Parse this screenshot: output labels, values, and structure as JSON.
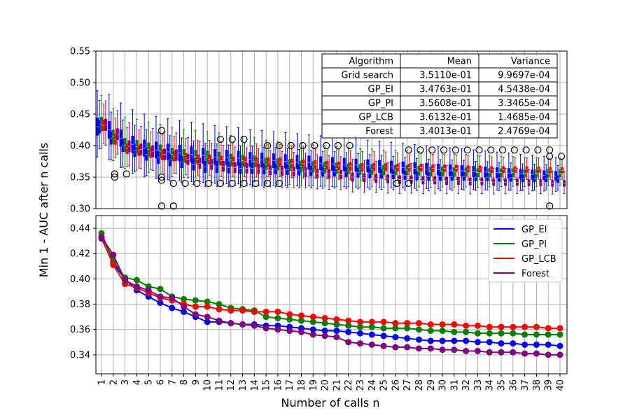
{
  "chart_data": [
    {
      "type": "box",
      "name": "boxplot-panel",
      "ylim": [
        0.3,
        0.55
      ],
      "yticks": [
        "0.30",
        "0.35",
        "0.40",
        "0.45",
        "0.50",
        "0.55"
      ],
      "series": [
        {
          "name": "Grid search",
          "color": "#0000ff",
          "median": [
            0.43,
            0.425,
            0.412,
            0.402,
            0.396,
            0.393,
            0.39,
            0.388,
            0.386,
            0.384,
            0.382,
            0.381,
            0.38,
            0.378,
            0.377,
            0.376,
            0.375,
            0.374,
            0.373,
            0.372,
            0.371,
            0.37,
            0.369,
            0.368,
            0.367,
            0.366,
            0.365,
            0.364,
            0.363,
            0.362,
            0.361,
            0.36,
            0.359,
            0.358,
            0.357,
            0.356,
            0.355,
            0.354,
            0.353,
            0.352
          ]
        },
        {
          "name": "GP_EI",
          "color": "#0000ff",
          "median": [
            0.43,
            0.412,
            0.4,
            0.392,
            0.386,
            0.381,
            0.377,
            0.374,
            0.37,
            0.366,
            0.366,
            0.365,
            0.364,
            0.364,
            0.363,
            0.363,
            0.362,
            0.361,
            0.36,
            0.359,
            0.359,
            0.358,
            0.357,
            0.356,
            0.355,
            0.354,
            0.353,
            0.352,
            0.351,
            0.351,
            0.351,
            0.351,
            0.35,
            0.35,
            0.349,
            0.349,
            0.348,
            0.348,
            0.348,
            0.347
          ]
        },
        {
          "name": "GP_PI",
          "color": "#008000",
          "median": [
            0.434,
            0.414,
            0.401,
            0.398,
            0.394,
            0.391,
            0.386,
            0.384,
            0.383,
            0.382,
            0.38,
            0.377,
            0.376,
            0.375,
            0.371,
            0.37,
            0.369,
            0.367,
            0.366,
            0.365,
            0.364,
            0.363,
            0.362,
            0.362,
            0.361,
            0.361,
            0.361,
            0.36,
            0.359,
            0.359,
            0.358,
            0.358,
            0.357,
            0.357,
            0.357,
            0.357,
            0.356,
            0.356,
            0.356,
            0.356
          ]
        },
        {
          "name": "GP_LCB",
          "color": "#ff0000",
          "median": [
            0.432,
            0.41,
            0.395,
            0.392,
            0.389,
            0.385,
            0.383,
            0.38,
            0.378,
            0.378,
            0.376,
            0.375,
            0.375,
            0.374,
            0.374,
            0.374,
            0.372,
            0.371,
            0.37,
            0.369,
            0.368,
            0.367,
            0.366,
            0.366,
            0.366,
            0.365,
            0.365,
            0.365,
            0.364,
            0.364,
            0.364,
            0.363,
            0.363,
            0.362,
            0.362,
            0.362,
            0.362,
            0.362,
            0.361,
            0.361
          ]
        },
        {
          "name": "Forest",
          "color": "#800080",
          "median": [
            0.433,
            0.418,
            0.399,
            0.394,
            0.391,
            0.386,
            0.385,
            0.378,
            0.372,
            0.37,
            0.367,
            0.365,
            0.364,
            0.363,
            0.361,
            0.36,
            0.359,
            0.358,
            0.356,
            0.355,
            0.354,
            0.35,
            0.349,
            0.348,
            0.347,
            0.346,
            0.346,
            0.345,
            0.345,
            0.344,
            0.344,
            0.343,
            0.343,
            0.342,
            0.342,
            0.342,
            0.341,
            0.341,
            0.34,
            0.34
          ]
        }
      ],
      "outliers": [
        {
          "call": 2,
          "value": 0.355
        },
        {
          "call": 2,
          "value": 0.35
        },
        {
          "call": 3,
          "value": 0.355
        },
        {
          "call": 6,
          "value": 0.424
        },
        {
          "call": 6,
          "value": 0.35
        },
        {
          "call": 6,
          "value": 0.345
        },
        {
          "call": 6,
          "value": 0.304
        },
        {
          "call": 7,
          "value": 0.304
        },
        {
          "call": 7,
          "value": 0.34
        },
        {
          "call": 8,
          "value": 0.34
        },
        {
          "call": 9,
          "value": 0.34
        },
        {
          "call": 10,
          "value": 0.34
        },
        {
          "call": 11,
          "value": 0.34
        },
        {
          "call": 11,
          "value": 0.41
        },
        {
          "call": 12,
          "value": 0.34
        },
        {
          "call": 12,
          "value": 0.41
        },
        {
          "call": 13,
          "value": 0.34
        },
        {
          "call": 13,
          "value": 0.41
        },
        {
          "call": 14,
          "value": 0.34
        },
        {
          "call": 15,
          "value": 0.34
        },
        {
          "call": 15,
          "value": 0.4
        },
        {
          "call": 16,
          "value": 0.34
        },
        {
          "call": 16,
          "value": 0.4
        },
        {
          "call": 17,
          "value": 0.4
        },
        {
          "call": 18,
          "value": 0.4
        },
        {
          "call": 19,
          "value": 0.4
        },
        {
          "call": 20,
          "value": 0.4
        },
        {
          "call": 21,
          "value": 0.4
        },
        {
          "call": 22,
          "value": 0.4
        },
        {
          "call": 26,
          "value": 0.34
        },
        {
          "call": 27,
          "value": 0.393
        },
        {
          "call": 27,
          "value": 0.34
        },
        {
          "call": 28,
          "value": 0.393
        },
        {
          "call": 29,
          "value": 0.393
        },
        {
          "call": 30,
          "value": 0.393
        },
        {
          "call": 31,
          "value": 0.393
        },
        {
          "call": 32,
          "value": 0.393
        },
        {
          "call": 33,
          "value": 0.393
        },
        {
          "call": 34,
          "value": 0.393
        },
        {
          "call": 35,
          "value": 0.393
        },
        {
          "call": 36,
          "value": 0.393
        },
        {
          "call": 37,
          "value": 0.393
        },
        {
          "call": 38,
          "value": 0.393
        },
        {
          "call": 39,
          "value": 0.393
        },
        {
          "call": 39,
          "value": 0.383
        },
        {
          "call": 39,
          "value": 0.304
        },
        {
          "call": 40,
          "value": 0.383
        }
      ],
      "table": {
        "headers": [
          "Algorithm",
          "Mean",
          "Variance"
        ],
        "rows": [
          [
            "Grid search",
            "3.5110e-01",
            "9.9697e-04"
          ],
          [
            "GP_EI",
            "3.4763e-01",
            "4.5438e-04"
          ],
          [
            "GP_PI",
            "3.5608e-01",
            "3.3465e-04"
          ],
          [
            "GP_LCB",
            "3.6132e-01",
            "1.4685e-04"
          ],
          [
            "Forest",
            "3.4013e-01",
            "2.4769e-04"
          ]
        ]
      }
    },
    {
      "type": "line",
      "name": "convergence-panel",
      "ylim": [
        0.325,
        0.45
      ],
      "yticks": [
        "0.34",
        "0.36",
        "0.38",
        "0.40",
        "0.42",
        "0.44"
      ],
      "x": [
        1,
        2,
        3,
        4,
        5,
        6,
        7,
        8,
        9,
        10,
        11,
        12,
        13,
        14,
        15,
        16,
        17,
        18,
        19,
        20,
        21,
        22,
        23,
        24,
        25,
        26,
        27,
        28,
        29,
        30,
        31,
        32,
        33,
        34,
        35,
        36,
        37,
        38,
        39,
        40
      ],
      "xlabel": "Number of calls n",
      "series": [
        {
          "name": "GP_EI",
          "color": "#0000ff",
          "values": [
            0.432,
            0.412,
            0.4,
            0.391,
            0.386,
            0.381,
            0.377,
            0.374,
            0.37,
            0.366,
            0.366,
            0.365,
            0.364,
            0.364,
            0.363,
            0.363,
            0.362,
            0.361,
            0.36,
            0.359,
            0.359,
            0.358,
            0.357,
            0.356,
            0.355,
            0.354,
            0.353,
            0.352,
            0.351,
            0.351,
            0.351,
            0.351,
            0.35,
            0.35,
            0.349,
            0.349,
            0.348,
            0.348,
            0.348,
            0.347
          ]
        },
        {
          "name": "GP_PI",
          "color": "#008000",
          "values": [
            0.436,
            0.414,
            0.401,
            0.399,
            0.394,
            0.392,
            0.386,
            0.384,
            0.383,
            0.382,
            0.38,
            0.377,
            0.376,
            0.375,
            0.37,
            0.369,
            0.368,
            0.367,
            0.366,
            0.365,
            0.364,
            0.363,
            0.362,
            0.362,
            0.361,
            0.361,
            0.361,
            0.36,
            0.359,
            0.359,
            0.358,
            0.358,
            0.357,
            0.357,
            0.357,
            0.357,
            0.356,
            0.356,
            0.356,
            0.356
          ]
        },
        {
          "name": "GP_LCB",
          "color": "#ff0000",
          "values": [
            0.433,
            0.411,
            0.396,
            0.393,
            0.389,
            0.385,
            0.383,
            0.38,
            0.378,
            0.378,
            0.376,
            0.375,
            0.375,
            0.374,
            0.374,
            0.374,
            0.372,
            0.371,
            0.37,
            0.369,
            0.368,
            0.367,
            0.366,
            0.366,
            0.366,
            0.365,
            0.365,
            0.365,
            0.364,
            0.364,
            0.364,
            0.363,
            0.363,
            0.362,
            0.362,
            0.362,
            0.362,
            0.362,
            0.361,
            0.361
          ]
        },
        {
          "name": "Forest",
          "color": "#800080",
          "values": [
            0.433,
            0.419,
            0.399,
            0.394,
            0.391,
            0.386,
            0.385,
            0.378,
            0.372,
            0.37,
            0.367,
            0.365,
            0.364,
            0.363,
            0.361,
            0.36,
            0.359,
            0.358,
            0.356,
            0.355,
            0.354,
            0.35,
            0.349,
            0.348,
            0.347,
            0.346,
            0.346,
            0.345,
            0.345,
            0.344,
            0.344,
            0.343,
            0.343,
            0.342,
            0.342,
            0.342,
            0.341,
            0.341,
            0.34,
            0.34
          ]
        }
      ],
      "legend": [
        "GP_EI",
        "GP_PI",
        "GP_LCB",
        "Forest"
      ]
    }
  ],
  "ylabel": "Min 1 - AUC after n calls"
}
